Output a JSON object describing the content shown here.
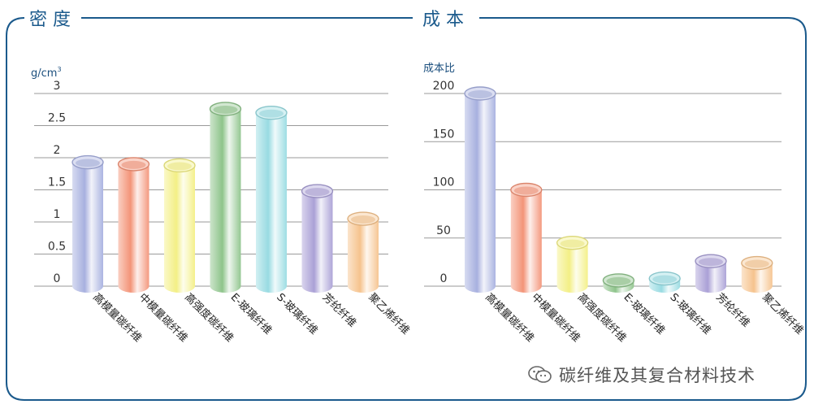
{
  "panels": {
    "left_title": "密 度",
    "right_title": "成 本"
  },
  "watermark": "碳纤维及其复合材料技术",
  "colors": {
    "frame": "#1b5a8c",
    "title": "#1b5a8c",
    "grid": "#9a9a9a"
  },
  "chart_data": [
    {
      "type": "bar",
      "title": "密 度",
      "ylabel_main": "g/cm",
      "ylabel_sup": "3",
      "ylim": [
        0,
        3
      ],
      "yticks": [
        "0",
        "0.5",
        "1",
        "1.5",
        "2",
        "2.5",
        "3"
      ],
      "categories": [
        "高模量碳纤维",
        "中模量碳纤维",
        "高强度碳纤维",
        "E-玻璃纤维",
        "S-玻璃纤维",
        "芳纶纤维",
        "聚乙烯纤维"
      ],
      "values": [
        1.93,
        1.9,
        1.88,
        2.76,
        2.7,
        1.48,
        1.05
      ],
      "bar_colors": [
        "#a7b0df",
        "#f39478",
        "#f3ef85",
        "#8ec48b",
        "#98dbe2",
        "#aaa0d6",
        "#f6c38d"
      ]
    },
    {
      "type": "bar",
      "title": "成 本",
      "ylabel_main": "成本比",
      "ylim": [
        0,
        200
      ],
      "yticks": [
        "0",
        "50",
        "100",
        "150",
        "200"
      ],
      "categories": [
        "高模量碳纤维",
        "中模量碳纤维",
        "高强度碳纤维",
        "E-玻璃纤维",
        "S-玻璃纤维",
        "芳纶纤维",
        "聚乙烯纤维"
      ],
      "values": [
        200,
        100,
        45,
        6,
        8,
        26,
        24
      ],
      "bar_colors": [
        "#a7b0df",
        "#f39478",
        "#f3ef85",
        "#8ec48b",
        "#98dbe2",
        "#aaa0d6",
        "#f6c38d"
      ]
    }
  ]
}
